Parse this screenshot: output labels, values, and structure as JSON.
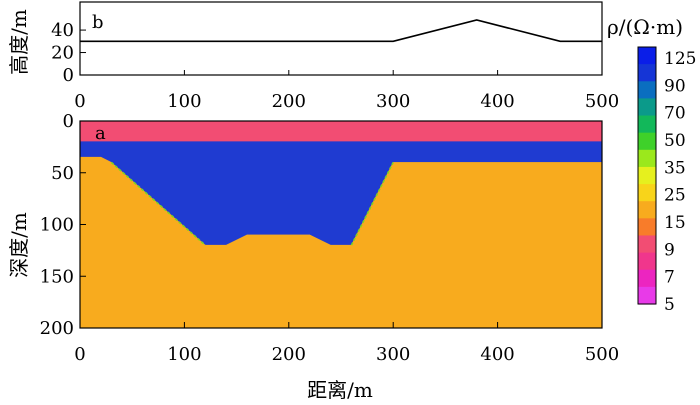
{
  "chart_data": [
    {
      "panel": "b",
      "type": "line",
      "ylabel": "高度/m",
      "xlim": [
        0,
        500
      ],
      "ylim": [
        0,
        65
      ],
      "x_ticks": [
        0,
        100,
        200,
        300,
        400,
        500
      ],
      "y_ticks": [
        0,
        20,
        40
      ],
      "series": [
        {
          "x": [
            0,
            300,
            380,
            460,
            500
          ],
          "y": [
            30,
            30,
            49,
            30,
            30
          ]
        }
      ]
    },
    {
      "panel": "a",
      "type": "heatmap",
      "xlabel": "距离/m",
      "ylabel": "深度/m",
      "xlim": [
        0,
        500
      ],
      "ylim": [
        200,
        0
      ],
      "x_ticks": [
        0,
        100,
        200,
        300,
        400,
        500
      ],
      "y_ticks": [
        0,
        50,
        100,
        150,
        200
      ],
      "layers": [
        {
          "rho": 9,
          "color": "#f24d73",
          "polygon": [
            [
              0,
              0
            ],
            [
              500,
              0
            ],
            [
              500,
              20
            ],
            [
              0,
              20
            ]
          ]
        },
        {
          "rho": 125,
          "color": "#1f3bd1",
          "polygon": [
            [
              0,
              20
            ],
            [
              500,
              20
            ],
            [
              500,
              40
            ],
            [
              300,
              40
            ],
            [
              260,
              120
            ],
            [
              240,
              120
            ],
            [
              220,
              110
            ],
            [
              160,
              110
            ],
            [
              140,
              120
            ],
            [
              120,
              120
            ],
            [
              30,
              40
            ],
            [
              20,
              35
            ],
            [
              0,
              35
            ]
          ]
        },
        {
          "rho": 25,
          "color": "#f8ab1e",
          "polygon": [
            [
              0,
              35
            ],
            [
              20,
              35
            ],
            [
              30,
              40
            ],
            [
              120,
              120
            ],
            [
              140,
              120
            ],
            [
              160,
              110
            ],
            [
              220,
              110
            ],
            [
              240,
              120
            ],
            [
              260,
              120
            ],
            [
              300,
              40
            ],
            [
              500,
              40
            ],
            [
              500,
              200
            ],
            [
              0,
              200
            ]
          ]
        }
      ],
      "colorbar": {
        "label": "ρ/(Ω·m)",
        "ticks": [
          "125",
          "90",
          "70",
          "50",
          "35",
          "25",
          "15",
          "9",
          "7",
          "5"
        ],
        "colors": [
          "#0a1ee8",
          "#1535d6",
          "#0a6ec0",
          "#0b9a8a",
          "#12b85a",
          "#3fd12a",
          "#9be81c",
          "#e6f01e",
          "#f8d41a",
          "#f8ab1e",
          "#f87c2a",
          "#f24d73",
          "#f0368c",
          "#ec25c0",
          "#e83ae8"
        ]
      }
    }
  ]
}
